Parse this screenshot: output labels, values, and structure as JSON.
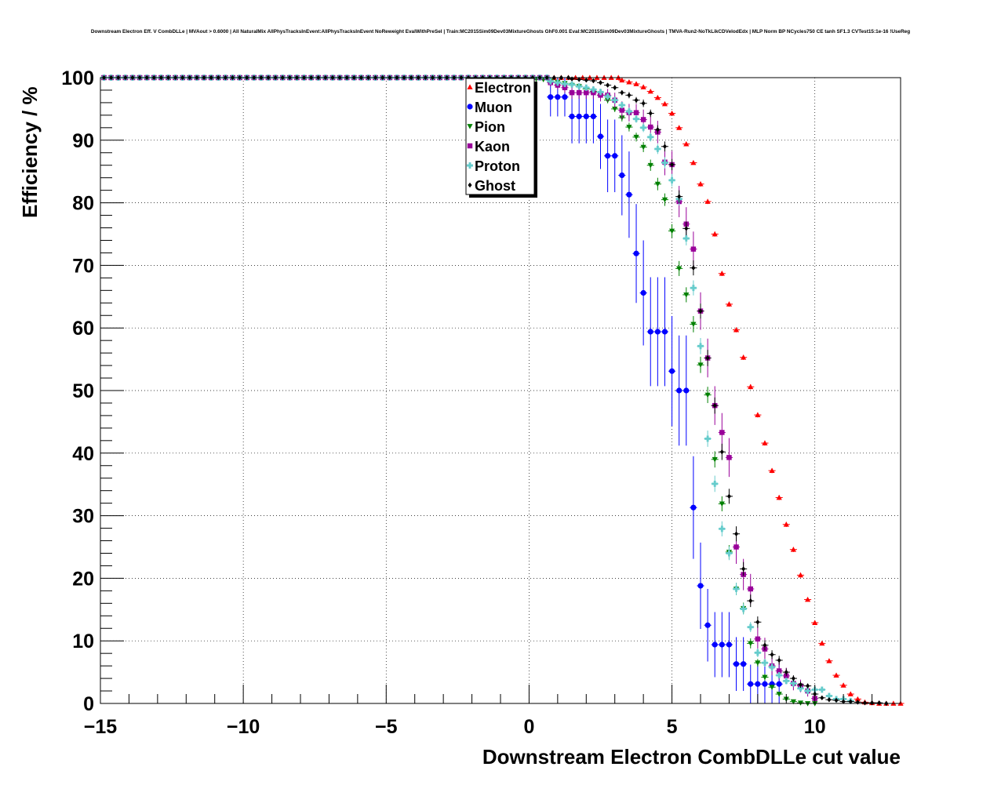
{
  "chart_data": {
    "type": "scatter",
    "title": "Downstream Electron Eff. V CombDLLe | MVAout > 0.6000 | All NaturalMix AllPhysTracksInEvent:AllPhysTracksInEvent NoReweight EvalWithPreSel | Train:MC2015Sim09Dev03MixtureGhosts GhF0.001 Eval:MC2015Sim09Dev03MixtureGhosts | TMVA-Run2-NoTkLikCDVelodEdx | MLP Norm BP NCycles750 CE tanh SF1.3 CVTest15:1e-16 !UseReg",
    "xlabel": "Downstream Electron CombDLLe cut value",
    "ylabel": "Efficiency / %",
    "xlim": [
      -15,
      13
    ],
    "ylim": [
      0,
      100
    ],
    "xticks": [
      -15,
      -10,
      -5,
      0,
      5,
      10
    ],
    "yticks": [
      0,
      10,
      20,
      30,
      40,
      50,
      60,
      70,
      80,
      90,
      100
    ],
    "grid": true,
    "legend_position": "top-center",
    "series": [
      {
        "name": "Electron",
        "color": "#ff0000",
        "marker": "triangle-up",
        "x": [
          3.25,
          3.5,
          3.75,
          4.0,
          4.25,
          4.5,
          4.75,
          5.0,
          5.25,
          5.5,
          5.75,
          6.0,
          6.25,
          6.5,
          6.75,
          7.0,
          7.25,
          7.5,
          7.75,
          8.0,
          8.25,
          8.5,
          8.75,
          9.0,
          9.25,
          9.5,
          9.75,
          10.0,
          10.25,
          10.5,
          10.75,
          11.0,
          11.25,
          11.5,
          11.75,
          12.0,
          12.25,
          12.5,
          12.75,
          13.0
        ],
        "y": [
          99.6,
          99.3,
          99.0,
          98.5,
          97.8,
          96.8,
          95.8,
          94.3,
          92.0,
          89.4,
          86.4,
          83.0,
          80.2,
          75.0,
          68.7,
          63.8,
          59.7,
          55.3,
          50.6,
          46.1,
          41.6,
          37.2,
          32.9,
          28.6,
          24.6,
          20.5,
          16.6,
          12.9,
          9.6,
          6.8,
          4.5,
          2.9,
          1.5,
          0.7,
          0.2,
          0.1,
          0.0,
          0.0,
          0.0,
          0.0
        ],
        "yerr": [
          0.1,
          0.1,
          0.1,
          0.2,
          0.2,
          0.2,
          0.2,
          0.3,
          0.3,
          0.3,
          0.3,
          0.4,
          0.4,
          0.4,
          0.4,
          0.4,
          0.4,
          0.4,
          0.4,
          0.4,
          0.4,
          0.4,
          0.4,
          0.4,
          0.4,
          0.4,
          0.3,
          0.3,
          0.3,
          0.3,
          0.2,
          0.2,
          0.1,
          0.1,
          0.1,
          0,
          0,
          0,
          0,
          0
        ]
      },
      {
        "name": "Muon",
        "color": "#0000ff",
        "marker": "circle",
        "x": [
          0.75,
          1.0,
          1.25,
          1.5,
          1.75,
          2.0,
          2.25,
          2.5,
          2.75,
          3.0,
          3.25,
          3.5,
          3.75,
          4.0,
          4.25,
          4.5,
          4.75,
          5.0,
          5.25,
          5.5,
          5.75,
          6.0,
          6.25,
          6.5,
          6.75,
          7.0,
          7.25,
          7.5,
          7.75,
          8.0,
          8.25,
          8.5,
          8.75
        ],
        "y": [
          96.9,
          96.9,
          96.9,
          93.8,
          93.8,
          93.8,
          93.8,
          90.6,
          87.5,
          87.5,
          84.4,
          81.3,
          71.9,
          65.6,
          59.4,
          59.4,
          59.4,
          53.1,
          50.0,
          50.0,
          31.3,
          18.8,
          12.5,
          9.4,
          9.4,
          9.4,
          6.3,
          6.3,
          3.1,
          3.1,
          3.1,
          3.1,
          3.1
        ],
        "yerr": [
          3.1,
          3.1,
          3.1,
          4.3,
          4.3,
          4.3,
          4.3,
          5.2,
          5.8,
          5.8,
          6.4,
          6.9,
          7.9,
          8.4,
          8.7,
          8.7,
          8.7,
          8.8,
          8.8,
          8.8,
          8.2,
          6.9,
          5.8,
          5.2,
          5.2,
          5.2,
          4.3,
          4.3,
          3.1,
          3.1,
          3.1,
          3.1,
          3.1
        ]
      },
      {
        "name": "Pion",
        "color": "#008000",
        "marker": "triangle-down",
        "x": [
          0.25,
          0.5,
          0.75,
          1.0,
          1.25,
          1.5,
          1.75,
          2.0,
          2.25,
          2.5,
          2.75,
          3.0,
          3.25,
          3.5,
          3.75,
          4.0,
          4.25,
          4.5,
          4.75,
          5.0,
          5.25,
          5.5,
          5.75,
          6.0,
          6.25,
          6.5,
          6.75,
          7.0,
          7.25,
          7.5,
          7.75,
          8.0,
          8.25,
          8.5,
          8.75,
          9.0,
          9.25,
          9.5,
          9.75,
          10.0
        ],
        "y": [
          99.8,
          99.7,
          99.5,
          99.3,
          99.1,
          98.8,
          98.6,
          98.2,
          97.8,
          97.2,
          96.4,
          95.0,
          93.6,
          92.1,
          90.5,
          88.9,
          86.0,
          83.0,
          80.5,
          75.5,
          69.5,
          65.3,
          60.6,
          54.1,
          49.3,
          39.0,
          31.9,
          24.2,
          18.3,
          15.2,
          9.6,
          6.5,
          4.2,
          2.6,
          1.5,
          0.7,
          0.3,
          0.1,
          0.0,
          0.0
        ],
        "yerr": [
          0.1,
          0.1,
          0.2,
          0.2,
          0.2,
          0.3,
          0.3,
          0.3,
          0.4,
          0.4,
          0.5,
          0.5,
          0.6,
          0.7,
          0.7,
          0.8,
          0.9,
          1.0,
          1.0,
          1.1,
          1.2,
          1.2,
          1.3,
          1.3,
          1.3,
          1.3,
          1.2,
          1.1,
          1.0,
          0.9,
          0.8,
          0.6,
          0.5,
          0.4,
          0.3,
          0.2,
          0.1,
          0.1,
          0,
          0
        ]
      },
      {
        "name": "Kaon",
        "color": "#990099",
        "marker": "square",
        "x": [
          0.75,
          1.0,
          1.25,
          1.5,
          1.75,
          2.0,
          2.25,
          2.5,
          2.75,
          3.0,
          3.25,
          3.5,
          3.75,
          4.0,
          4.25,
          4.5,
          4.75,
          5.0,
          5.25,
          5.5,
          5.75,
          6.0,
          6.25,
          6.5,
          6.75,
          7.0,
          7.25,
          7.5,
          7.75,
          8.0,
          8.25,
          8.5,
          8.75,
          9.0,
          9.25,
          9.5,
          9.75,
          10.0
        ],
        "y": [
          99.2,
          98.8,
          98.4,
          97.6,
          97.6,
          97.6,
          97.6,
          97.2,
          97.2,
          96.4,
          94.8,
          94.4,
          94.4,
          93.3,
          92.1,
          91.3,
          86.5,
          86.1,
          80.2,
          76.6,
          72.6,
          62.7,
          55.2,
          47.6,
          43.3,
          39.3,
          25.0,
          20.6,
          18.3,
          10.3,
          8.7,
          6.0,
          5.2,
          4.4,
          3.2,
          2.8,
          2.0,
          0.8
        ],
        "yerr": [
          0.6,
          0.7,
          0.8,
          1.0,
          1.0,
          1.0,
          1.0,
          1.0,
          1.0,
          1.2,
          1.4,
          1.4,
          1.4,
          1.6,
          1.7,
          1.8,
          2.1,
          2.2,
          2.5,
          2.7,
          2.8,
          3.0,
          3.1,
          3.1,
          3.1,
          3.1,
          2.7,
          2.5,
          2.4,
          1.9,
          1.8,
          1.5,
          1.4,
          1.3,
          1.1,
          1.0,
          0.9,
          0.6
        ]
      },
      {
        "name": "Proton",
        "color": "#66cccc",
        "marker": "cross",
        "x": [
          0.75,
          1.0,
          1.25,
          1.5,
          1.75,
          2.0,
          2.25,
          2.5,
          2.75,
          3.0,
          3.25,
          3.5,
          3.75,
          4.0,
          4.25,
          4.5,
          4.75,
          5.0,
          5.25,
          5.5,
          5.75,
          6.0,
          6.25,
          6.5,
          6.75,
          7.0,
          7.25,
          7.5,
          7.75,
          8.0,
          8.25,
          8.5,
          8.75,
          9.0,
          9.25,
          9.5,
          9.75,
          10.0,
          10.25,
          10.5,
          10.75,
          11.0,
          11.25
        ],
        "y": [
          99.4,
          99.2,
          99.0,
          98.9,
          98.6,
          98.4,
          98.1,
          97.7,
          97.0,
          96.4,
          95.6,
          94.6,
          93.4,
          92.0,
          90.5,
          88.6,
          86.4,
          83.6,
          80.6,
          74.3,
          66.4,
          57.1,
          42.3,
          35.1,
          27.9,
          24.0,
          18.3,
          15.1,
          12.2,
          8.1,
          6.5,
          5.8,
          4.5,
          3.6,
          3.2,
          2.4,
          2.0,
          2.2,
          2.2,
          1.2,
          0.7,
          0.7,
          0.4
        ],
        "yerr": [
          0.2,
          0.2,
          0.2,
          0.3,
          0.3,
          0.3,
          0.3,
          0.4,
          0.4,
          0.5,
          0.5,
          0.6,
          0.6,
          0.7,
          0.7,
          0.8,
          0.9,
          1.0,
          1.0,
          1.1,
          1.2,
          1.3,
          1.3,
          1.3,
          1.2,
          1.1,
          1.0,
          0.9,
          0.8,
          0.7,
          0.6,
          0.6,
          0.5,
          0.5,
          0.4,
          0.4,
          0.4,
          0.4,
          0.4,
          0.3,
          0.2,
          0.2,
          0.2
        ]
      },
      {
        "name": "Ghost",
        "color": "#000000",
        "marker": "diamond",
        "x": [
          1.5,
          1.75,
          2.0,
          2.25,
          2.5,
          2.75,
          3.0,
          3.25,
          3.5,
          3.75,
          4.0,
          4.25,
          4.5,
          4.75,
          5.0,
          5.25,
          5.5,
          5.75,
          6.0,
          6.25,
          6.5,
          6.75,
          7.0,
          7.25,
          7.5,
          7.75,
          8.0,
          8.25,
          8.5,
          8.75,
          9.0,
          9.25,
          9.5,
          9.75,
          10.0,
          10.25,
          10.5,
          10.75,
          11.0,
          11.25,
          11.5,
          11.75,
          12.0,
          12.25,
          12.5
        ],
        "y": [
          99.8,
          99.7,
          99.6,
          99.5,
          99.2,
          98.8,
          98.4,
          97.6,
          97.2,
          96.4,
          95.9,
          94.3,
          91.7,
          89.0,
          86.1,
          81.0,
          75.9,
          69.6,
          62.7,
          55.2,
          47.6,
          40.2,
          33.1,
          27.1,
          21.5,
          16.4,
          13.0,
          9.3,
          7.8,
          6.9,
          5.0,
          4.0,
          3.0,
          2.8,
          1.5,
          0.9,
          0.6,
          0.5,
          0.3,
          0.3,
          0.2,
          0.1,
          0.1,
          0.1,
          0.0
        ],
        "yerr": [
          0.2,
          0.2,
          0.2,
          0.2,
          0.3,
          0.3,
          0.4,
          0.4,
          0.5,
          0.5,
          0.6,
          0.6,
          0.7,
          0.8,
          0.9,
          1.0,
          1.1,
          1.2,
          1.2,
          1.3,
          1.3,
          1.3,
          1.2,
          1.2,
          1.1,
          1.0,
          0.9,
          0.8,
          0.7,
          0.7,
          0.6,
          0.5,
          0.5,
          0.4,
          0.3,
          0.2,
          0.2,
          0.2,
          0.1,
          0.1,
          0.1,
          0.1,
          0.1,
          0.1,
          0
        ]
      }
    ]
  }
}
